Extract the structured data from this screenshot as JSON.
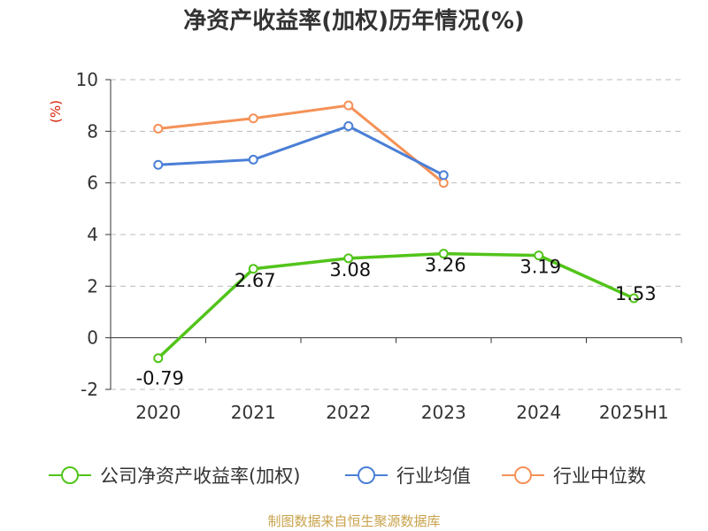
{
  "chart_data": {
    "type": "line",
    "title": "净资产收益率(加权)历年情况(%)",
    "ylabel": "(%)",
    "xlabel": "",
    "categories": [
      "2020",
      "2021",
      "2022",
      "2023",
      "2024",
      "2025H1"
    ],
    "ylim": [
      -2,
      10
    ],
    "yticks": [
      -2,
      0,
      2,
      4,
      6,
      8,
      10
    ],
    "grid": true,
    "legend_position": "bottom",
    "series": [
      {
        "name": "公司净资产收益率(加权)",
        "color": "#52c41a",
        "values": [
          -0.79,
          2.67,
          3.08,
          3.26,
          3.19,
          1.53
        ],
        "labels": [
          "-0.79",
          "2.67",
          "3.08",
          "3.26",
          "3.19",
          "1.53"
        ]
      },
      {
        "name": "行业均值",
        "color": "#4a7fd6",
        "values": [
          6.7,
          6.9,
          8.2,
          6.3,
          null,
          null
        ]
      },
      {
        "name": "行业中位数",
        "color": "#f59157",
        "values": [
          8.1,
          8.5,
          9.0,
          6.0,
          null,
          null
        ]
      }
    ]
  },
  "source": "制图数据来自恒生聚源数据库"
}
